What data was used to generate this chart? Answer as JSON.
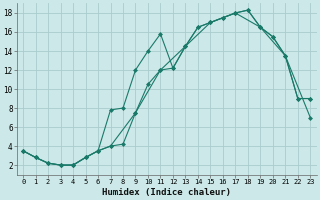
{
  "xlabel": "Humidex (Indice chaleur)",
  "xlim": [
    -0.5,
    23.5
  ],
  "ylim": [
    1,
    19
  ],
  "xticks": [
    0,
    1,
    2,
    3,
    4,
    5,
    6,
    7,
    8,
    9,
    10,
    11,
    12,
    13,
    14,
    15,
    16,
    17,
    18,
    19,
    20,
    21,
    22,
    23
  ],
  "yticks": [
    2,
    4,
    6,
    8,
    10,
    12,
    14,
    16,
    18
  ],
  "bg_color": "#cce8e8",
  "grid_color": "#aacccc",
  "line_color": "#1a7a6a",
  "line1_x": [
    0,
    1,
    2,
    3,
    4,
    5,
    6,
    7,
    8,
    9,
    10,
    11,
    12,
    13,
    14,
    15,
    16,
    17,
    18,
    19,
    20,
    21,
    22,
    23
  ],
  "line1_y": [
    3.5,
    2.8,
    2.2,
    2.0,
    2.0,
    2.8,
    3.5,
    7.8,
    8.0,
    12.0,
    14.0,
    15.8,
    12.2,
    14.5,
    16.5,
    17.0,
    17.5,
    18.0,
    18.3,
    16.5,
    15.5,
    13.5,
    9.0,
    9.0
  ],
  "line2_x": [
    0,
    1,
    2,
    3,
    4,
    5,
    6,
    7,
    8,
    9,
    10,
    11,
    12,
    13,
    14,
    15,
    16,
    17,
    18,
    19,
    20,
    21,
    22,
    23
  ],
  "line2_y": [
    3.5,
    2.8,
    2.2,
    2.0,
    2.0,
    2.8,
    3.5,
    4.0,
    4.2,
    7.5,
    10.5,
    12.0,
    12.2,
    14.5,
    16.5,
    17.0,
    17.5,
    18.0,
    18.3,
    16.5,
    15.5,
    13.5,
    9.0,
    9.0
  ],
  "line3_x": [
    0,
    1,
    2,
    3,
    4,
    5,
    6,
    7,
    9,
    11,
    13,
    15,
    17,
    19,
    21,
    23
  ],
  "line3_y": [
    3.5,
    2.8,
    2.2,
    2.0,
    2.0,
    2.8,
    3.5,
    4.0,
    7.5,
    12.0,
    14.5,
    17.0,
    18.0,
    16.5,
    13.5,
    7.0
  ],
  "marker_size": 2.5
}
